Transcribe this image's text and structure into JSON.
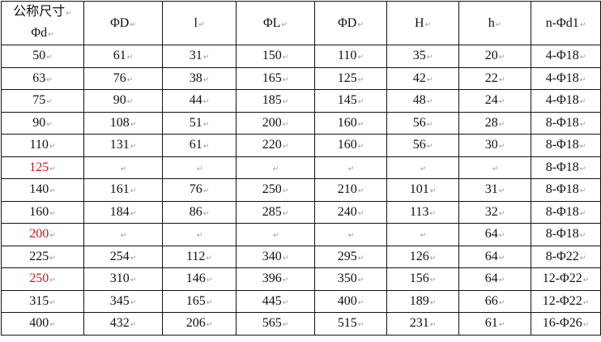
{
  "headers": [
    "公称尺寸",
    "Φd",
    "ΦD",
    "l",
    "ΦL",
    "ΦD",
    "H",
    "h",
    "n-Φd1"
  ],
  "highlight_color": "#d0121b",
  "rows": [
    {
      "dn": "50",
      "highlight": false,
      "cells": [
        "61",
        "31",
        "150",
        "110",
        "35",
        "20",
        "4-Φ18"
      ]
    },
    {
      "dn": "63",
      "highlight": false,
      "cells": [
        "76",
        "38",
        "165",
        "125",
        "42",
        "22",
        "4-Φ18"
      ]
    },
    {
      "dn": "75",
      "highlight": false,
      "cells": [
        "90",
        "44",
        "185",
        "145",
        "48",
        "24",
        "4-Φ18"
      ]
    },
    {
      "dn": "90",
      "highlight": false,
      "cells": [
        "108",
        "51",
        "200",
        "160",
        "56",
        "28",
        "8-Φ18"
      ]
    },
    {
      "dn": "110",
      "highlight": false,
      "cells": [
        "131",
        "61",
        "220",
        "160",
        "56",
        "30",
        "8-Φ18"
      ]
    },
    {
      "dn": "125",
      "highlight": true,
      "cells": [
        "",
        "",
        "",
        "",
        "",
        "",
        "8-Φ18"
      ]
    },
    {
      "dn": "140",
      "highlight": false,
      "cells": [
        "161",
        "76",
        "250",
        "210",
        "101",
        "31",
        "8-Φ18"
      ]
    },
    {
      "dn": "160",
      "highlight": false,
      "cells": [
        "184",
        "86",
        "285",
        "240",
        "113",
        "32",
        "8-Φ18"
      ]
    },
    {
      "dn": "200",
      "highlight": true,
      "cells": [
        "",
        "",
        "",
        "",
        "",
        "64",
        "8-Φ18"
      ]
    },
    {
      "dn": "225",
      "highlight": false,
      "cells": [
        "254",
        "112",
        "340",
        "295",
        "126",
        "64",
        "8-Φ22"
      ]
    },
    {
      "dn": "250",
      "highlight": true,
      "cells": [
        "310",
        "146",
        "396",
        "350",
        "156",
        "64",
        "12-Φ22"
      ]
    },
    {
      "dn": "315",
      "highlight": false,
      "cells": [
        "345",
        "165",
        "445",
        "400",
        "189",
        "66",
        "12-Φ22"
      ]
    },
    {
      "dn": "400",
      "highlight": false,
      "cells": [
        "432",
        "206",
        "565",
        "515",
        "231",
        "61",
        "16-Φ26"
      ]
    }
  ]
}
